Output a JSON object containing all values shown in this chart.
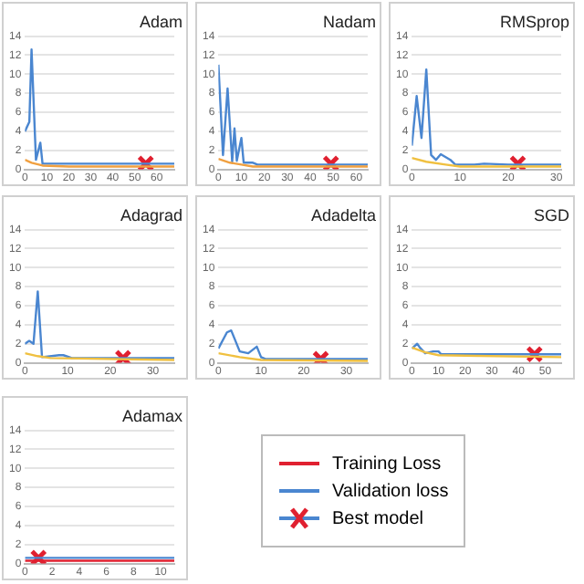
{
  "chart_data": [
    {
      "type": "line",
      "title": "Adam",
      "xlim": [
        0,
        68
      ],
      "xticks": [
        0,
        10,
        20,
        30,
        40,
        50,
        60
      ],
      "ylim": [
        0,
        14
      ],
      "yticks": [
        0,
        2,
        4,
        6,
        8,
        10,
        12,
        14
      ],
      "grid": "y",
      "marker": "none",
      "series": [
        {
          "type": "line",
          "color": "#f0a040",
          "x": [
            0,
            3,
            8,
            20,
            68
          ],
          "values": [
            1,
            0.7,
            0.4,
            0.3,
            0.3
          ]
        },
        {
          "type": "line",
          "color": "#4a86d0",
          "x": [
            0,
            2,
            3,
            5,
            7,
            8,
            20,
            40,
            68
          ],
          "values": [
            4,
            5,
            12.6,
            1,
            2.8,
            0.6,
            0.6,
            0.6,
            0.6
          ]
        },
        {
          "type": "scatter",
          "marker": "cross",
          "color": "#e02030",
          "x": [
            55
          ],
          "values": [
            0.6
          ]
        }
      ]
    },
    {
      "type": "line",
      "title": "Nadam",
      "xlim": [
        0,
        65
      ],
      "xticks": [
        0,
        10,
        20,
        30,
        40,
        50,
        60
      ],
      "ylim": [
        0,
        14
      ],
      "yticks": [
        0,
        2,
        4,
        6,
        8,
        10,
        12,
        14
      ],
      "grid": "y",
      "marker": "none",
      "series": [
        {
          "type": "line",
          "color": "#f0a040",
          "x": [
            0,
            5,
            10,
            15,
            65
          ],
          "values": [
            1.1,
            0.7,
            0.5,
            0.3,
            0.3
          ]
        },
        {
          "type": "line",
          "color": "#4a86d0",
          "x": [
            0,
            2,
            4,
            6,
            7,
            8,
            10,
            11,
            15,
            17,
            65
          ],
          "values": [
            11,
            1.5,
            8.5,
            0.8,
            4.3,
            0.9,
            3.3,
            0.7,
            0.7,
            0.5,
            0.5
          ]
        },
        {
          "type": "scatter",
          "marker": "cross",
          "color": "#e02030",
          "x": [
            49
          ],
          "values": [
            0.6
          ]
        }
      ]
    },
    {
      "type": "line",
      "title": "RMSprop",
      "xlim": [
        0,
        31
      ],
      "xticks": [
        0,
        10,
        20,
        30
      ],
      "ylim": [
        0,
        14
      ],
      "yticks": [
        0,
        2,
        4,
        6,
        8,
        10,
        12,
        14
      ],
      "grid": "y",
      "marker": "none",
      "series": [
        {
          "type": "line",
          "color": "#f0c040",
          "x": [
            0,
            3,
            7,
            10,
            31
          ],
          "values": [
            1.2,
            0.8,
            0.5,
            0.3,
            0.3
          ]
        },
        {
          "type": "line",
          "color": "#4a86d0",
          "x": [
            0,
            1,
            2,
            3,
            4,
            5,
            6,
            8,
            9,
            13,
            15,
            20,
            31
          ],
          "values": [
            2.5,
            7.7,
            3.3,
            10.5,
            1.5,
            1,
            1.6,
            1,
            0.5,
            0.5,
            0.6,
            0.5,
            0.5
          ]
        },
        {
          "type": "scatter",
          "marker": "cross",
          "color": "#e02030",
          "x": [
            22
          ],
          "values": [
            0.6
          ]
        }
      ]
    },
    {
      "type": "line",
      "title": "Adagrad",
      "xlim": [
        0,
        35
      ],
      "xticks": [
        0,
        10,
        20,
        30
      ],
      "ylim": [
        0,
        14
      ],
      "yticks": [
        0,
        2,
        4,
        6,
        8,
        10,
        12,
        14
      ],
      "grid": "y",
      "marker": "none",
      "series": [
        {
          "type": "line",
          "color": "#f0c040",
          "x": [
            0,
            3,
            6,
            35
          ],
          "values": [
            1,
            0.7,
            0.5,
            0.3
          ]
        },
        {
          "type": "line",
          "color": "#4a86d0",
          "x": [
            0,
            1,
            2,
            3,
            4,
            8,
            9,
            11,
            35
          ],
          "values": [
            2,
            2.3,
            2,
            7.5,
            0.6,
            0.8,
            0.8,
            0.5,
            0.5
          ]
        },
        {
          "type": "scatter",
          "marker": "cross",
          "color": "#e02030",
          "x": [
            23
          ],
          "values": [
            0.5
          ]
        }
      ]
    },
    {
      "type": "line",
      "title": "Adadelta",
      "xlim": [
        0,
        35
      ],
      "xticks": [
        0,
        10,
        20,
        30
      ],
      "ylim": [
        0,
        14
      ],
      "yticks": [
        0,
        2,
        4,
        6,
        8,
        10,
        12,
        14
      ],
      "grid": "y",
      "marker": "none",
      "series": [
        {
          "type": "line",
          "color": "#f0c040",
          "x": [
            0,
            5,
            10,
            35
          ],
          "values": [
            1,
            0.6,
            0.3,
            0.2
          ]
        },
        {
          "type": "line",
          "color": "#4a86d0",
          "x": [
            0,
            2,
            3,
            5,
            7,
            9,
            10,
            11,
            35
          ],
          "values": [
            1.5,
            3.2,
            3.4,
            1.2,
            1,
            1.7,
            0.6,
            0.4,
            0.4
          ]
        },
        {
          "type": "scatter",
          "marker": "cross",
          "color": "#e02030",
          "x": [
            24
          ],
          "values": [
            0.4
          ]
        }
      ]
    },
    {
      "type": "line",
      "title": "SGD",
      "xlim": [
        0,
        56
      ],
      "xticks": [
        0,
        10,
        20,
        30,
        40,
        50
      ],
      "ylim": [
        0,
        14
      ],
      "yticks": [
        0,
        2,
        4,
        6,
        8,
        10,
        12,
        14
      ],
      "grid": "y",
      "marker": "none",
      "series": [
        {
          "type": "line",
          "color": "#f0c040",
          "x": [
            0,
            5,
            10,
            56
          ],
          "values": [
            1.6,
            1.1,
            0.8,
            0.6
          ]
        },
        {
          "type": "line",
          "color": "#4a86d0",
          "x": [
            0,
            2,
            3,
            5,
            8,
            10,
            11,
            56
          ],
          "values": [
            1.5,
            2,
            1.6,
            1,
            1.2,
            1.2,
            0.9,
            0.9
          ]
        },
        {
          "type": "scatter",
          "marker": "cross",
          "color": "#e02030",
          "x": [
            46
          ],
          "values": [
            0.9
          ]
        }
      ]
    },
    {
      "type": "line",
      "title": "Adamax",
      "xlim": [
        0,
        11
      ],
      "xticks": [
        0,
        2,
        4,
        6,
        8,
        10
      ],
      "ylim": [
        0,
        14
      ],
      "yticks": [
        0,
        2,
        4,
        6,
        8,
        10,
        12,
        14
      ],
      "grid": "y",
      "marker": "none",
      "legend": "right",
      "series": [
        {
          "type": "line",
          "name": "Training Loss",
          "color": "#e02030",
          "x": [
            0,
            11
          ],
          "values": [
            0.3,
            0.3
          ]
        },
        {
          "type": "line",
          "name": "Validation loss",
          "color": "#4a86d0",
          "x": [
            0,
            11
          ],
          "values": [
            0.6,
            0.6
          ]
        },
        {
          "type": "scatter",
          "name": "Best model",
          "marker": "cross",
          "color": "#e02030",
          "x": [
            1
          ],
          "values": [
            0.6
          ]
        }
      ]
    }
  ]
}
